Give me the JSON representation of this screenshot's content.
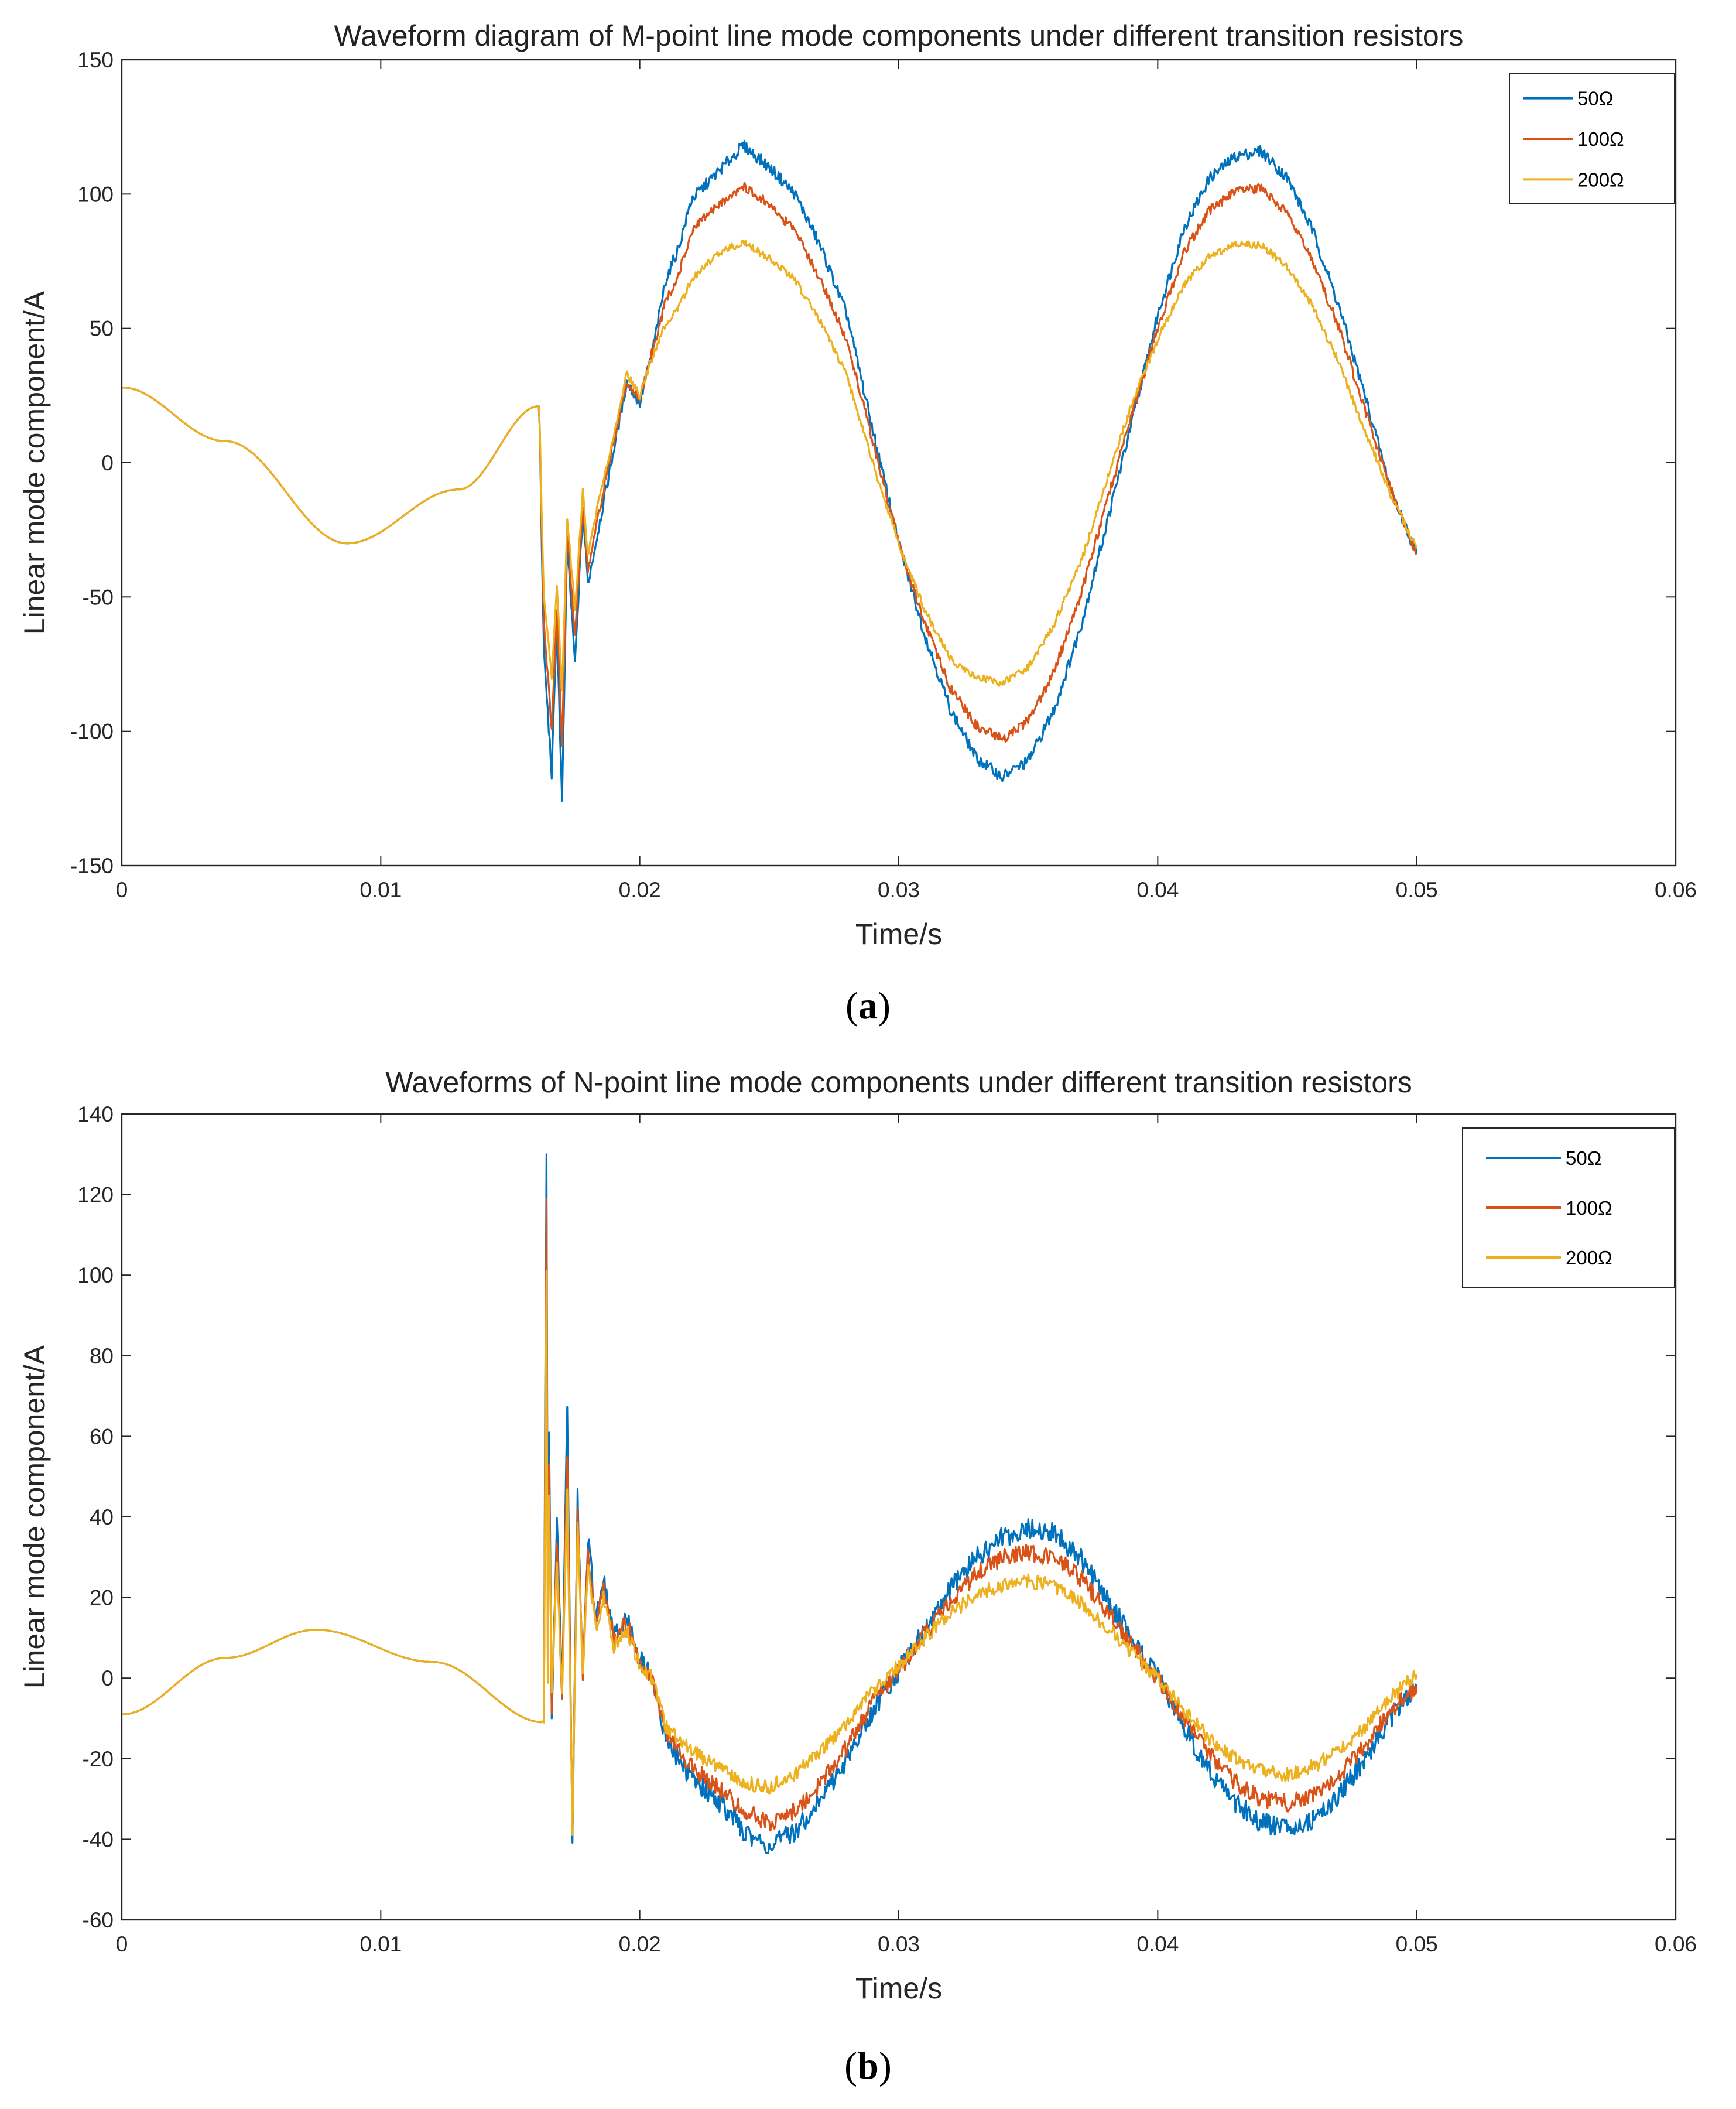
{
  "charts": [
    {
      "title": "Waveform diagram of M-point line mode components under different transition resistors",
      "xlabel": "Time/s",
      "ylabel": "Linear mode component/A",
      "xlim": [
        0,
        0.06
      ],
      "ylim": [
        -150,
        150
      ],
      "xticks": [
        "0",
        "0.01",
        "0.02",
        "0.03",
        "0.04",
        "0.05",
        "0.06"
      ],
      "yticks": [
        "-150",
        "-100",
        "-50",
        "0",
        "50",
        "100",
        "150"
      ],
      "caption_letter": "a"
    },
    {
      "title": "Waveforms of N-point line mode components under different transition resistors",
      "xlabel": "Time/s",
      "ylabel": "Linear mode component/A",
      "xlim": [
        0,
        0.06
      ],
      "ylim": [
        -60,
        140
      ],
      "xticks": [
        "0",
        "0.01",
        "0.02",
        "0.03",
        "0.04",
        "0.05",
        "0.06"
      ],
      "yticks": [
        "-60",
        "-40",
        "-20",
        "0",
        "20",
        "40",
        "60",
        "80",
        "100",
        "120",
        "140"
      ],
      "caption_letter": "b"
    }
  ],
  "legend": [
    {
      "label": "50Ω",
      "color": "#0072BD"
    },
    {
      "label": "100Ω",
      "color": "#D95319"
    },
    {
      "label": "200Ω",
      "color": "#EDB120"
    }
  ],
  "chart_data": [
    {
      "type": "line",
      "title": "Waveform diagram of M-point line mode components under different transition resistors",
      "xlabel": "Time/s",
      "ylabel": "Linear mode component/A",
      "xlim": [
        0,
        0.06
      ],
      "ylim": [
        -150,
        150
      ],
      "legend_position": "top-right",
      "series": [
        {
          "name": "50Ω",
          "color": "#0072BD",
          "x": [
            0,
            0.004,
            0.0087,
            0.013,
            0.0161,
            0.0163,
            0.0166,
            0.0168,
            0.017,
            0.0172,
            0.0175,
            0.0178,
            0.018,
            0.0185,
            0.019,
            0.0195,
            0.02,
            0.0205,
            0.021,
            0.0215,
            0.022,
            0.023,
            0.024,
            0.025,
            0.026,
            0.027,
            0.028,
            0.029,
            0.03,
            0.031,
            0.032,
            0.033,
            0.034,
            0.035,
            0.036,
            0.037,
            0.038,
            0.039,
            0.04,
            0.041,
            0.042,
            0.043,
            0.044,
            0.045,
            0.046,
            0.047,
            0.048,
            0.049,
            0.05
          ],
          "y": [
            28,
            8,
            -30,
            -10,
            21,
            -70,
            -116,
            -60,
            -127,
            -30,
            -75,
            -18,
            -45,
            -20,
            5,
            30,
            22,
            42,
            68,
            80,
            98,
            108,
            118,
            110,
            100,
            80,
            55,
            12,
            -30,
            -64,
            -92,
            -110,
            -117,
            -111,
            -92,
            -62,
            -24,
            15,
            55,
            87,
            106,
            114,
            116,
            106,
            86,
            58,
            25,
            -10,
            -34
          ]
        },
        {
          "name": "100Ω",
          "color": "#D95319",
          "x": [
            0,
            0.004,
            0.0087,
            0.013,
            0.0161,
            0.0163,
            0.0166,
            0.0168,
            0.017,
            0.0172,
            0.0175,
            0.0178,
            0.018,
            0.0185,
            0.019,
            0.0195,
            0.02,
            0.0205,
            0.021,
            0.0215,
            0.022,
            0.023,
            0.024,
            0.025,
            0.026,
            0.027,
            0.028,
            0.029,
            0.03,
            0.031,
            0.032,
            0.033,
            0.034,
            0.035,
            0.036,
            0.037,
            0.038,
            0.039,
            0.04,
            0.041,
            0.042,
            0.043,
            0.044,
            0.045,
            0.046,
            0.047,
            0.048,
            0.049,
            0.05
          ],
          "y": [
            28,
            8,
            -30,
            -10,
            21,
            -60,
            -100,
            -55,
            -105,
            -25,
            -65,
            -15,
            -40,
            -15,
            8,
            30,
            24,
            42,
            60,
            70,
            86,
            96,
            103,
            96,
            86,
            68,
            45,
            8,
            -30,
            -60,
            -84,
            -98,
            -103,
            -96,
            -78,
            -50,
            -16,
            18,
            50,
            78,
            94,
            101,
            102,
            93,
            75,
            50,
            20,
            -10,
            -34
          ]
        },
        {
          "name": "200Ω",
          "color": "#EDB120",
          "x": [
            0,
            0.004,
            0.0087,
            0.013,
            0.0161,
            0.0163,
            0.0166,
            0.0168,
            0.017,
            0.0172,
            0.0175,
            0.0178,
            0.018,
            0.0185,
            0.019,
            0.0195,
            0.02,
            0.0205,
            0.021,
            0.0215,
            0.022,
            0.023,
            0.024,
            0.025,
            0.026,
            0.027,
            0.028,
            0.029,
            0.03,
            0.031,
            0.032,
            0.033,
            0.034,
            0.035,
            0.036,
            0.037,
            0.038,
            0.039,
            0.04,
            0.041,
            0.042,
            0.043,
            0.044,
            0.045,
            0.046,
            0.047,
            0.048,
            0.049,
            0.05
          ],
          "y": [
            28,
            8,
            -30,
            -10,
            21,
            -50,
            -80,
            -45,
            -85,
            -20,
            -55,
            -10,
            -35,
            -10,
            10,
            33,
            25,
            40,
            52,
            58,
            68,
            78,
            82,
            76,
            68,
            52,
            32,
            0,
            -30,
            -55,
            -73,
            -80,
            -82,
            -76,
            -60,
            -38,
            -8,
            22,
            46,
            66,
            77,
            81,
            81,
            73,
            58,
            37,
            12,
            -12,
            -32
          ]
        }
      ]
    },
    {
      "type": "line",
      "title": "Waveforms of N-point line mode components under different transition resistors",
      "xlabel": "Time/s",
      "ylabel": "Linear mode component/A",
      "xlim": [
        0,
        0.06
      ],
      "ylim": [
        -60,
        140
      ],
      "legend_position": "top-right",
      "series": [
        {
          "name": "50Ω",
          "color": "#0072BD",
          "x": [
            0,
            0.004,
            0.0075,
            0.012,
            0.0163,
            0.01635,
            0.0164,
            0.01645,
            0.0165,
            0.0166,
            0.0168,
            0.017,
            0.0172,
            0.0174,
            0.0176,
            0.0178,
            0.018,
            0.0183,
            0.0186,
            0.019,
            0.0195,
            0.02,
            0.0205,
            0.021,
            0.022,
            0.023,
            0.024,
            0.025,
            0.026,
            0.027,
            0.028,
            0.029,
            0.03,
            0.031,
            0.032,
            0.033,
            0.034,
            0.035,
            0.036,
            0.037,
            0.038,
            0.039,
            0.04,
            0.041,
            0.042,
            0.043,
            0.044,
            0.045,
            0.046,
            0.047,
            0.048,
            0.049,
            0.05
          ],
          "y": [
            -9,
            5,
            12,
            4,
            -11,
            70,
            130,
            10,
            60,
            -10,
            40,
            -5,
            66,
            -39,
            45,
            0,
            35,
            15,
            25,
            10,
            15,
            5,
            0,
            -15,
            -25,
            -30,
            -38,
            -42,
            -38,
            -30,
            -20,
            -8,
            2,
            12,
            22,
            30,
            35,
            37,
            36,
            30,
            20,
            10,
            0,
            -12,
            -23,
            -31,
            -36,
            -37,
            -35,
            -29,
            -20,
            -10,
            -2
          ]
        },
        {
          "name": "100Ω",
          "color": "#D95319",
          "x": [
            0,
            0.004,
            0.0075,
            0.012,
            0.0163,
            0.01635,
            0.0164,
            0.01645,
            0.0165,
            0.0166,
            0.0168,
            0.017,
            0.0172,
            0.0174,
            0.0176,
            0.0178,
            0.018,
            0.0183,
            0.0186,
            0.019,
            0.0195,
            0.02,
            0.0205,
            0.021,
            0.022,
            0.023,
            0.024,
            0.025,
            0.026,
            0.027,
            0.028,
            0.029,
            0.03,
            0.031,
            0.032,
            0.033,
            0.034,
            0.035,
            0.036,
            0.037,
            0.038,
            0.039,
            0.04,
            0.041,
            0.042,
            0.043,
            0.044,
            0.045,
            0.046,
            0.047,
            0.048,
            0.049,
            0.05
          ],
          "y": [
            -9,
            5,
            12,
            4,
            -11,
            60,
            119,
            5,
            55,
            -8,
            35,
            -5,
            57,
            -39,
            42,
            0,
            32,
            14,
            22,
            10,
            14,
            4,
            0,
            -14,
            -22,
            -27,
            -33,
            -36,
            -33,
            -26,
            -17,
            -6,
            2,
            11,
            19,
            26,
            30,
            31,
            30,
            25,
            17,
            8,
            0,
            -10,
            -19,
            -26,
            -30,
            -31,
            -29,
            -24,
            -17,
            -8,
            -2
          ]
        },
        {
          "name": "200Ω",
          "color": "#EDB120",
          "x": [
            0,
            0.004,
            0.0075,
            0.012,
            0.0163,
            0.01635,
            0.0164,
            0.01645,
            0.0165,
            0.0166,
            0.0168,
            0.017,
            0.0172,
            0.0174,
            0.0176,
            0.0178,
            0.018,
            0.0183,
            0.0186,
            0.019,
            0.0195,
            0.02,
            0.0205,
            0.021,
            0.022,
            0.023,
            0.024,
            0.025,
            0.026,
            0.027,
            0.028,
            0.029,
            0.03,
            0.031,
            0.032,
            0.033,
            0.034,
            0.035,
            0.036,
            0.037,
            0.038,
            0.039,
            0.04,
            0.041,
            0.042,
            0.043,
            0.044,
            0.045,
            0.046,
            0.047,
            0.048,
            0.049,
            0.05
          ],
          "y": [
            -9,
            5,
            12,
            4,
            -11,
            50,
            101,
            0,
            45,
            -5,
            28,
            -5,
            46,
            -38,
            38,
            0,
            28,
            12,
            20,
            8,
            12,
            3,
            0,
            -12,
            -18,
            -22,
            -26,
            -27,
            -24,
            -18,
            -11,
            -3,
            3,
            10,
            16,
            21,
            23,
            24,
            23,
            19,
            13,
            6,
            0,
            -8,
            -15,
            -20,
            -23,
            -24,
            -22,
            -18,
            -12,
            -5,
            1
          ]
        }
      ]
    }
  ]
}
